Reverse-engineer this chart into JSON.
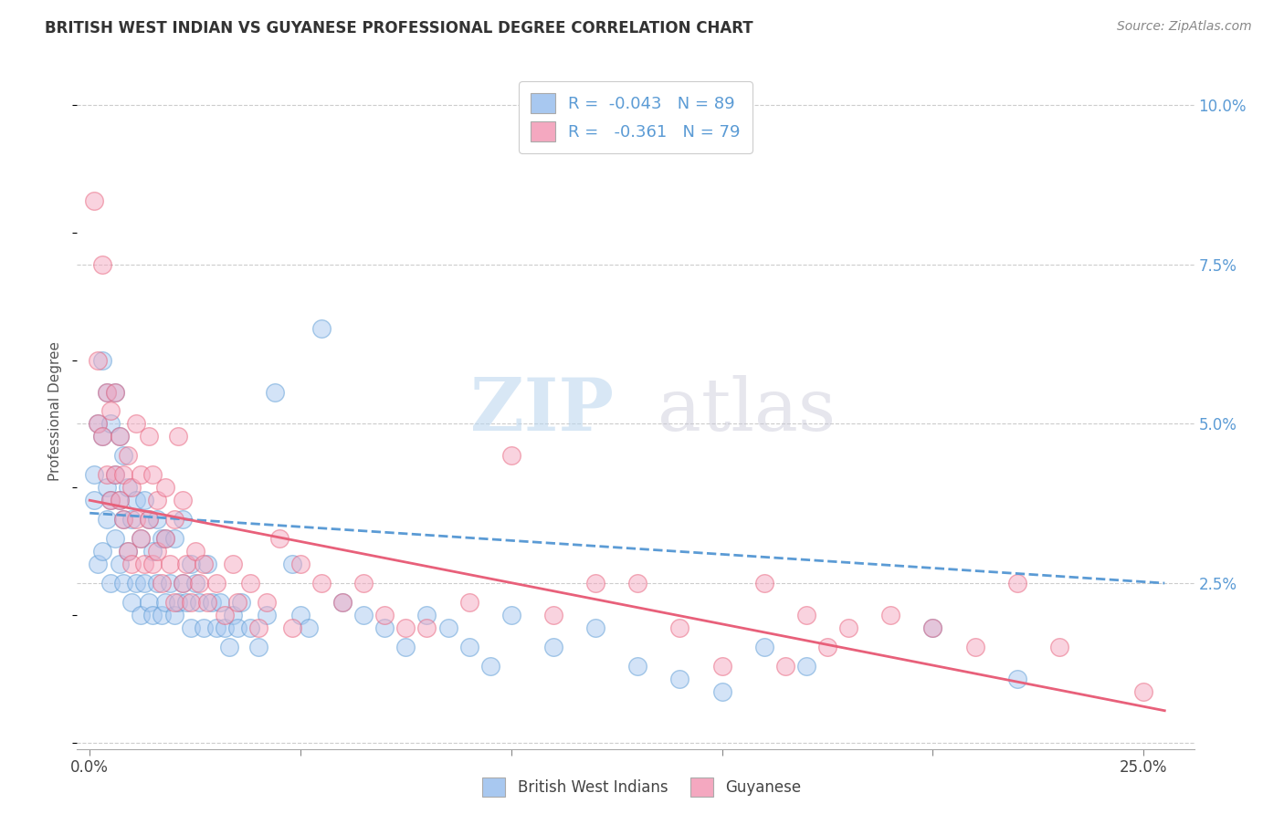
{
  "title": "BRITISH WEST INDIAN VS GUYANESE PROFESSIONAL DEGREE CORRELATION CHART",
  "source": "Source: ZipAtlas.com",
  "ylabel": "Professional Degree",
  "legend_label1": "British West Indians",
  "legend_label2": "Guyanese",
  "color_blue": "#A8C8F0",
  "color_pink": "#F4A8C0",
  "color_blue_trend": "#5B9BD5",
  "color_pink_trend": "#E8607A",
  "watermark_zip": "ZIP",
  "watermark_atlas": "atlas",
  "background": "#FFFFFF",
  "grid_color": "#CCCCCC",
  "xlim": [
    -0.003,
    0.262
  ],
  "ylim": [
    -0.001,
    0.105
  ],
  "x_tick_positions": [
    0.0,
    0.05,
    0.1,
    0.15,
    0.2,
    0.25
  ],
  "x_tick_labels": [
    "0.0%",
    "",
    "",
    "",
    "",
    "25.0%"
  ],
  "y_tick_positions": [
    0.0,
    0.025,
    0.05,
    0.075,
    0.1
  ],
  "y_tick_labels": [
    "",
    "2.5%",
    "5.0%",
    "7.5%",
    "10.0%"
  ],
  "blue_trend_start_y": 0.036,
  "blue_trend_end_y": 0.025,
  "pink_trend_start_y": 0.038,
  "pink_trend_end_y": 0.005,
  "blue_x": [
    0.001,
    0.001,
    0.002,
    0.002,
    0.003,
    0.003,
    0.003,
    0.004,
    0.004,
    0.004,
    0.005,
    0.005,
    0.005,
    0.006,
    0.006,
    0.006,
    0.007,
    0.007,
    0.007,
    0.008,
    0.008,
    0.008,
    0.009,
    0.009,
    0.01,
    0.01,
    0.011,
    0.011,
    0.012,
    0.012,
    0.013,
    0.013,
    0.014,
    0.014,
    0.015,
    0.015,
    0.016,
    0.016,
    0.017,
    0.017,
    0.018,
    0.018,
    0.019,
    0.02,
    0.02,
    0.021,
    0.022,
    0.022,
    0.023,
    0.024,
    0.024,
    0.025,
    0.026,
    0.027,
    0.028,
    0.029,
    0.03,
    0.031,
    0.032,
    0.033,
    0.034,
    0.035,
    0.036,
    0.038,
    0.04,
    0.042,
    0.044,
    0.048,
    0.05,
    0.052,
    0.055,
    0.06,
    0.065,
    0.07,
    0.075,
    0.08,
    0.085,
    0.09,
    0.095,
    0.1,
    0.11,
    0.12,
    0.13,
    0.14,
    0.15,
    0.16,
    0.17,
    0.2,
    0.22
  ],
  "blue_y": [
    0.038,
    0.042,
    0.028,
    0.05,
    0.03,
    0.048,
    0.06,
    0.04,
    0.055,
    0.035,
    0.025,
    0.038,
    0.05,
    0.032,
    0.042,
    0.055,
    0.028,
    0.038,
    0.048,
    0.025,
    0.035,
    0.045,
    0.03,
    0.04,
    0.022,
    0.035,
    0.025,
    0.038,
    0.02,
    0.032,
    0.025,
    0.038,
    0.022,
    0.035,
    0.02,
    0.03,
    0.025,
    0.035,
    0.02,
    0.032,
    0.022,
    0.032,
    0.025,
    0.02,
    0.032,
    0.022,
    0.025,
    0.035,
    0.022,
    0.018,
    0.028,
    0.025,
    0.022,
    0.018,
    0.028,
    0.022,
    0.018,
    0.022,
    0.018,
    0.015,
    0.02,
    0.018,
    0.022,
    0.018,
    0.015,
    0.02,
    0.055,
    0.028,
    0.02,
    0.018,
    0.065,
    0.022,
    0.02,
    0.018,
    0.015,
    0.02,
    0.018,
    0.015,
    0.012,
    0.02,
    0.015,
    0.018,
    0.012,
    0.01,
    0.008,
    0.015,
    0.012,
    0.018,
    0.01
  ],
  "pink_x": [
    0.001,
    0.002,
    0.002,
    0.003,
    0.003,
    0.004,
    0.004,
    0.005,
    0.005,
    0.006,
    0.006,
    0.007,
    0.007,
    0.008,
    0.008,
    0.009,
    0.009,
    0.01,
    0.01,
    0.011,
    0.011,
    0.012,
    0.012,
    0.013,
    0.014,
    0.014,
    0.015,
    0.015,
    0.016,
    0.016,
    0.017,
    0.018,
    0.018,
    0.019,
    0.02,
    0.02,
    0.021,
    0.022,
    0.022,
    0.023,
    0.024,
    0.025,
    0.026,
    0.027,
    0.028,
    0.03,
    0.032,
    0.034,
    0.035,
    0.038,
    0.04,
    0.042,
    0.045,
    0.048,
    0.05,
    0.055,
    0.06,
    0.065,
    0.07,
    0.075,
    0.08,
    0.09,
    0.1,
    0.11,
    0.12,
    0.13,
    0.14,
    0.15,
    0.16,
    0.165,
    0.17,
    0.175,
    0.18,
    0.19,
    0.2,
    0.21,
    0.22,
    0.23,
    0.25
  ],
  "pink_y": [
    0.085,
    0.06,
    0.05,
    0.075,
    0.048,
    0.042,
    0.055,
    0.038,
    0.052,
    0.042,
    0.055,
    0.038,
    0.048,
    0.035,
    0.042,
    0.03,
    0.045,
    0.028,
    0.04,
    0.035,
    0.05,
    0.032,
    0.042,
    0.028,
    0.035,
    0.048,
    0.028,
    0.042,
    0.03,
    0.038,
    0.025,
    0.032,
    0.04,
    0.028,
    0.022,
    0.035,
    0.048,
    0.025,
    0.038,
    0.028,
    0.022,
    0.03,
    0.025,
    0.028,
    0.022,
    0.025,
    0.02,
    0.028,
    0.022,
    0.025,
    0.018,
    0.022,
    0.032,
    0.018,
    0.028,
    0.025,
    0.022,
    0.025,
    0.02,
    0.018,
    0.018,
    0.022,
    0.045,
    0.02,
    0.025,
    0.025,
    0.018,
    0.012,
    0.025,
    0.012,
    0.02,
    0.015,
    0.018,
    0.02,
    0.018,
    0.015,
    0.025,
    0.015,
    0.008
  ]
}
